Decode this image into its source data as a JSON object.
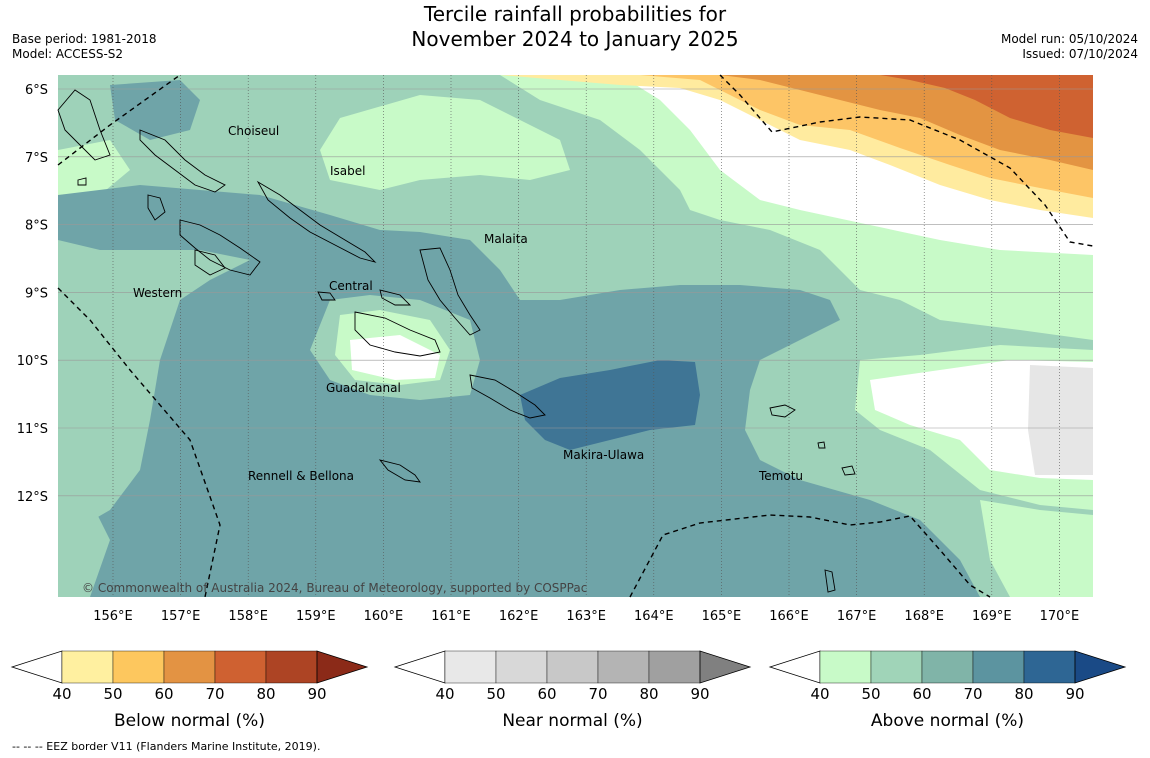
{
  "title": {
    "line1": "Tercile rainfall probabilities for",
    "line2": "November 2024 to January 2025"
  },
  "meta_left": {
    "base_period": "Base period: 1981-2018",
    "model": "Model: ACCESS-S2"
  },
  "meta_right": {
    "model_run": "Model run: 05/10/2024",
    "issued": "Issued: 07/10/2024"
  },
  "map": {
    "lat_labels": [
      "6°S",
      "7°S",
      "8°S",
      "9°S",
      "10°S",
      "11°S",
      "12°S"
    ],
    "lon_labels": [
      "156°E",
      "157°E",
      "158°E",
      "159°E",
      "160°E",
      "161°E",
      "162°E",
      "163°E",
      "164°E",
      "165°E",
      "166°E",
      "167°E",
      "168°E",
      "169°E",
      "170°E"
    ],
    "province_labels": {
      "choiseul": "Choiseul",
      "isabel": "Isabel",
      "malaita": "Malaita",
      "western": "Western",
      "central": "Central",
      "guadalcanal": "Guadalcanal",
      "makira": "Makira-Ulawa",
      "rennell": "Rennell & Bellona",
      "temotu": "Temotu"
    },
    "copyright": "© Commonwealth of Australia 2024, Bureau of Meteorology, supported by COSPPac"
  },
  "colorbars": [
    {
      "title": "Below normal (%)",
      "ticks": [
        "40",
        "50",
        "60",
        "70",
        "80",
        "90"
      ],
      "colors": [
        "#ffffff",
        "#fff0a0",
        "#fdc75e",
        "#e39343",
        "#cf6131",
        "#ad4424",
        "#8b2a18"
      ]
    },
    {
      "title": "Near normal (%)",
      "ticks": [
        "40",
        "50",
        "60",
        "70",
        "80",
        "90"
      ],
      "colors": [
        "#ffffff",
        "#e8e8e8",
        "#d8d8d8",
        "#c8c8c8",
        "#b4b4b4",
        "#a0a0a0",
        "#808080"
      ]
    },
    {
      "title": "Above normal (%)",
      "ticks": [
        "40",
        "50",
        "60",
        "70",
        "80",
        "90"
      ],
      "colors": [
        "#ffffff",
        "#c8fac8",
        "#a0d4b8",
        "#80b4a8",
        "#5c94a0",
        "#2e6694",
        "#1a4a86"
      ]
    }
  ],
  "footnote": "--  --  -- EEZ border V11 (Flanders Marine Institute, 2019).",
  "colors": {
    "above_40_50": "#c8fac8",
    "above_50_60": "#9ed2b9",
    "above_60_70": "#6fa4a8",
    "above_70_80": "#3f7595",
    "below_40_50": "#ffeb9f",
    "below_50_60": "#fdc566",
    "below_60_70": "#e39442",
    "below_70_80": "#cf6231",
    "near_40_50": "#e6e6e6"
  }
}
